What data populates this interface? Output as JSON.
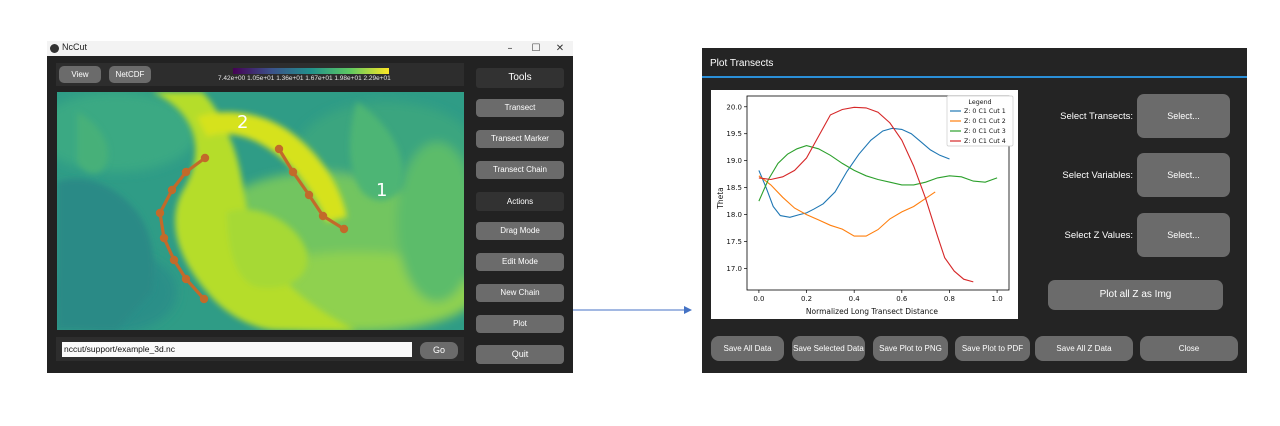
{
  "ncut_window": {
    "title": "NcCut",
    "controls": {
      "minimize": "–",
      "maximize": "☐",
      "close": "✕"
    },
    "top_buttons": {
      "view": "View",
      "netcdf": "NetCDF"
    },
    "colorbar": {
      "labels": "7.42e+00 1.05e+01 1.36e+01 1.67e+01 1.98e+01 2.29e+01"
    },
    "map_labels": {
      "label_1": "1",
      "label_2": "2"
    },
    "side_panel": {
      "tools": "Tools",
      "transect": "Transect",
      "transect_marker": "Transect Marker",
      "transect_chain": "Transect Chain",
      "actions": "Actions",
      "drag_mode": "Drag Mode",
      "edit_mode": "Edit Mode",
      "new_chain": "New Chain",
      "plot": "Plot",
      "quit": "Quit"
    },
    "file_path": {
      "value": "nccut/support/example_3d.nc",
      "go": "Go"
    }
  },
  "plot_window": {
    "title": "Plot Transects",
    "selectors": {
      "transects_label": "Select Transects:",
      "variables_label": "Select Variables:",
      "z_values_label": "Select Z Values:",
      "select_button": "Select...",
      "plot_all_z": "Plot all Z as Img"
    },
    "bottom_buttons": {
      "save_all_data": "Save All Data",
      "save_selected_data": "Save Selected Data",
      "save_plot_png": "Save Plot to PNG",
      "save_plot_pdf": "Save Plot to PDF",
      "save_all_z_data": "Save All Z Data",
      "close": "Close"
    }
  },
  "chart_data": {
    "type": "line",
    "title": "",
    "xlabel": "Normalized Long Transect Distance",
    "ylabel": "Theta",
    "xlim": [
      -0.05,
      1.05
    ],
    "ylim": [
      16.6,
      20.2
    ],
    "x_ticks": [
      0.0,
      0.2,
      0.4,
      0.6,
      0.8,
      1.0
    ],
    "y_ticks": [
      17.0,
      17.5,
      18.0,
      18.5,
      19.0,
      19.5,
      20.0
    ],
    "x_tick_labels": [
      "0.0",
      "0.2",
      "0.4",
      "0.6",
      "0.8",
      "1.0"
    ],
    "y_tick_labels": [
      "17.0",
      "17.5",
      "18.0",
      "18.5",
      "19.0",
      "19.5",
      "20.0"
    ],
    "legend_title": "Legend",
    "legend_position": "top-right",
    "series": [
      {
        "name": "Z: 0 C1 Cut 1",
        "color": "#1f77b4",
        "x": [
          0.0,
          0.03,
          0.06,
          0.09,
          0.13,
          0.17,
          0.2,
          0.23,
          0.27,
          0.32,
          0.37,
          0.42,
          0.47,
          0.52,
          0.56,
          0.6,
          0.64,
          0.68,
          0.72,
          0.76,
          0.8
        ],
        "y": [
          18.82,
          18.5,
          18.15,
          17.98,
          17.95,
          18.0,
          18.03,
          18.1,
          18.2,
          18.42,
          18.8,
          19.12,
          19.38,
          19.55,
          19.6,
          19.58,
          19.5,
          19.35,
          19.2,
          19.1,
          19.03
        ]
      },
      {
        "name": "Z: 0 C1 Cut 2",
        "color": "#ff7f0e",
        "x": [
          0.0,
          0.05,
          0.1,
          0.15,
          0.2,
          0.25,
          0.3,
          0.35,
          0.4,
          0.45,
          0.5,
          0.55,
          0.6,
          0.65,
          0.7,
          0.74
        ],
        "y": [
          18.72,
          18.55,
          18.32,
          18.12,
          18.0,
          17.9,
          17.8,
          17.73,
          17.6,
          17.6,
          17.72,
          17.92,
          18.05,
          18.15,
          18.3,
          18.42
        ]
      },
      {
        "name": "Z: 0 C1 Cut 3",
        "color": "#2ca02c",
        "x": [
          0.0,
          0.04,
          0.08,
          0.12,
          0.16,
          0.2,
          0.25,
          0.3,
          0.35,
          0.4,
          0.45,
          0.5,
          0.55,
          0.6,
          0.65,
          0.7,
          0.75,
          0.8,
          0.85,
          0.9,
          0.95,
          1.0
        ],
        "y": [
          18.25,
          18.65,
          18.95,
          19.12,
          19.22,
          19.28,
          19.22,
          19.1,
          18.95,
          18.82,
          18.72,
          18.65,
          18.6,
          18.55,
          18.55,
          18.6,
          18.68,
          18.72,
          18.7,
          18.62,
          18.6,
          18.68
        ]
      },
      {
        "name": "Z: 0 C1 Cut 4",
        "color": "#d62728",
        "x": [
          0.0,
          0.05,
          0.1,
          0.15,
          0.2,
          0.25,
          0.3,
          0.35,
          0.4,
          0.45,
          0.5,
          0.55,
          0.6,
          0.65,
          0.7,
          0.75,
          0.78,
          0.82,
          0.86,
          0.9
        ],
        "y": [
          18.68,
          18.65,
          18.7,
          18.82,
          19.05,
          19.45,
          19.85,
          19.95,
          19.99,
          19.98,
          19.9,
          19.7,
          19.38,
          18.9,
          18.3,
          17.6,
          17.2,
          16.95,
          16.8,
          16.75
        ]
      }
    ]
  }
}
